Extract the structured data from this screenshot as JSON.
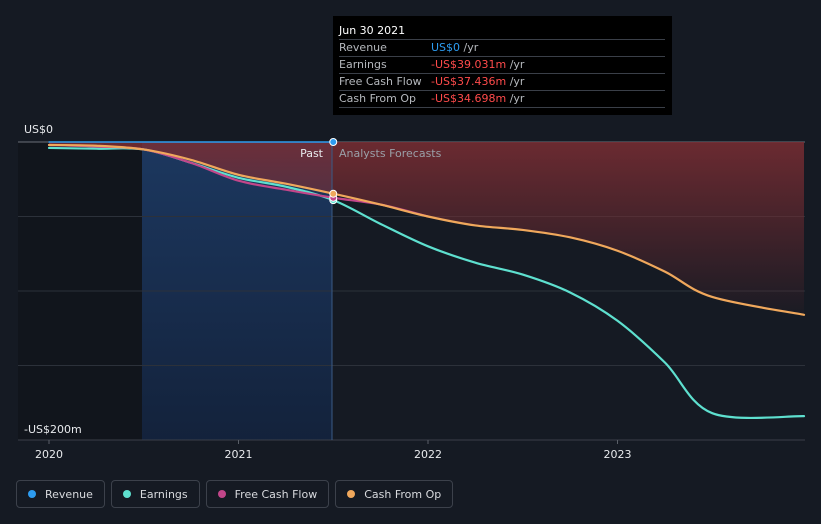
{
  "chart_data": {
    "type": "line",
    "x_axis": {
      "ticks": [
        "2020",
        "2021",
        "2022",
        "2023"
      ],
      "range": [
        "2020",
        "2024"
      ]
    },
    "y_axis": {
      "top_label": "US$0",
      "bottom_label": "-US$200m",
      "ylim": [
        -200,
        0
      ],
      "gridlines": [
        0,
        -50,
        -100,
        -150,
        -200
      ]
    },
    "divider": {
      "date": "Jun 30 2021",
      "past_label": "Past",
      "forecast_label": "Analysts Forecasts"
    },
    "series": [
      {
        "name": "Revenue",
        "color": "#2d9cf0",
        "points": [
          [
            2019.99,
            0
          ],
          [
            2021.5,
            0
          ]
        ]
      },
      {
        "name": "Earnings",
        "color": "#5ee0cf",
        "points": [
          [
            2019.99,
            -4
          ],
          [
            2020.25,
            -4.5
          ],
          [
            2020.5,
            -5
          ],
          [
            2020.75,
            -14
          ],
          [
            2021.0,
            -24
          ],
          [
            2021.25,
            -30
          ],
          [
            2021.5,
            -39
          ],
          [
            2021.75,
            -55
          ],
          [
            2022.0,
            -70
          ],
          [
            2022.25,
            -81
          ],
          [
            2022.5,
            -89
          ],
          [
            2022.75,
            -101
          ],
          [
            2023.0,
            -120
          ],
          [
            2023.25,
            -148
          ],
          [
            2023.5,
            -182
          ],
          [
            2023.99,
            -184
          ]
        ]
      },
      {
        "name": "Free Cash Flow",
        "color": "#c2468a",
        "points": [
          [
            2019.99,
            -2
          ],
          [
            2020.25,
            -3
          ],
          [
            2020.5,
            -5
          ],
          [
            2020.75,
            -14
          ],
          [
            2021.0,
            -26
          ],
          [
            2021.25,
            -32
          ],
          [
            2021.5,
            -37.4
          ],
          [
            2021.75,
            -42
          ],
          [
            2022.0,
            -50
          ]
        ]
      },
      {
        "name": "Cash From Op",
        "color": "#f0a85c",
        "points": [
          [
            2019.99,
            -2
          ],
          [
            2020.25,
            -2.5
          ],
          [
            2020.5,
            -5
          ],
          [
            2020.75,
            -12
          ],
          [
            2021.0,
            -22
          ],
          [
            2021.25,
            -28
          ],
          [
            2021.5,
            -34.7
          ],
          [
            2021.75,
            -42
          ],
          [
            2022.0,
            -50
          ],
          [
            2022.25,
            -56
          ],
          [
            2022.5,
            -59
          ],
          [
            2022.75,
            -64
          ],
          [
            2023.0,
            -73
          ],
          [
            2023.25,
            -87
          ],
          [
            2023.5,
            -104
          ],
          [
            2023.99,
            -116
          ]
        ]
      }
    ]
  },
  "tooltip": {
    "date": "Jun 30 2021",
    "rows": [
      {
        "label": "Revenue",
        "value": "US$0",
        "unit": " /yr",
        "color": "#2d9cf0"
      },
      {
        "label": "Earnings",
        "value": "-US$39.031m",
        "unit": " /yr",
        "color": "#ff4b4b"
      },
      {
        "label": "Free Cash Flow",
        "value": "-US$37.436m",
        "unit": " /yr",
        "color": "#ff4b4b"
      },
      {
        "label": "Cash From Op",
        "value": "-US$34.698m",
        "unit": " /yr",
        "color": "#ff4b4b"
      }
    ]
  },
  "legend": [
    {
      "label": "Revenue",
      "color": "#2d9cf0"
    },
    {
      "label": "Earnings",
      "color": "#5ee0cf"
    },
    {
      "label": "Free Cash Flow",
      "color": "#c2468a"
    },
    {
      "label": "Cash From Op",
      "color": "#f0a85c"
    }
  ]
}
